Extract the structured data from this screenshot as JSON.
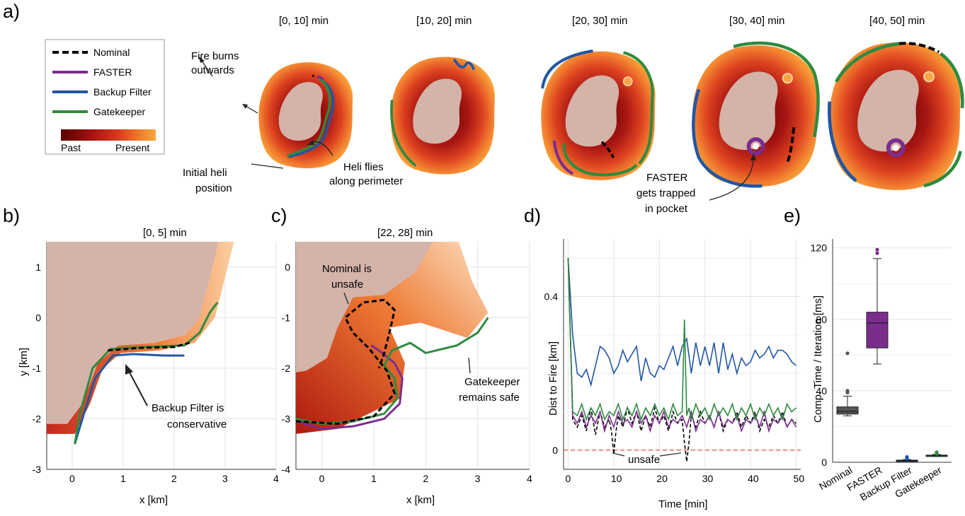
{
  "panels": {
    "a": "a)",
    "b": "b)",
    "c": "c)",
    "d": "d)",
    "e": "e)"
  },
  "legend": {
    "items": [
      {
        "label": "Nominal",
        "color": "#000000",
        "dash": true
      },
      {
        "label": "FASTER",
        "color": "#7b2d8e",
        "dash": false
      },
      {
        "label": "Backup Filter",
        "color": "#2156a5",
        "dash": false
      },
      {
        "label": "Gatekeeper",
        "color": "#2e8b3e",
        "dash": false
      }
    ],
    "colorbar_left": "Past",
    "colorbar_right": "Present",
    "colorbar_colors": [
      "#5a0000",
      "#a01010",
      "#d83a1c",
      "#f07a26",
      "#f8a63a"
    ]
  },
  "panel_a": {
    "titles": [
      "[0, 10] min",
      "[10, 20] min",
      "[20, 30] min",
      "[30, 40] min",
      "[40, 50] min"
    ],
    "annotations": {
      "fire_burns": [
        "Fire burns",
        "outwards"
      ],
      "initial_heli": [
        "Initial heli",
        "position"
      ],
      "heli_flies": [
        "Heli flies",
        "along perimeter"
      ],
      "faster_trapped": [
        "FASTER",
        "gets trapped",
        "in pocket"
      ]
    }
  },
  "panel_b": {
    "title": "[0, 5] min",
    "xlabel": "x [km]",
    "ylabel": "y [km]",
    "xticks": [
      "0",
      "1",
      "2",
      "3",
      "4"
    ],
    "yticks": [
      "1",
      "0",
      "-1",
      "-2",
      "-3"
    ],
    "annotation": [
      "Backup Filter is",
      "conservative"
    ]
  },
  "panel_c": {
    "title": "[22, 28] min",
    "xlabel": "x [km]",
    "xticks": [
      "0",
      "1",
      "2",
      "3",
      "4"
    ],
    "yticks": [
      "0",
      "-1",
      "-2",
      "-3",
      "-4"
    ],
    "annotation_nominal": [
      "Nominal is",
      "unsafe"
    ],
    "annotation_gatekeeper": [
      "Gatekeeper",
      "remains safe"
    ]
  },
  "chart_data": [
    {
      "type": "line",
      "panel": "d",
      "xlabel": "Time [min]",
      "ylabel": "Dist to Fire [km]",
      "xlim": [
        -1,
        51
      ],
      "ylim": [
        -0.05,
        0.55
      ],
      "xticks": [
        "0",
        "10",
        "20",
        "30",
        "40",
        "50"
      ],
      "yticks": [
        "0",
        "0.4"
      ],
      "grid": true,
      "safety_threshold": 0,
      "annotation": "unsafe",
      "series": [
        {
          "name": "Backup Filter",
          "color": "#2156a5",
          "x": [
            0,
            0.5,
            1,
            2,
            3,
            4,
            5,
            6,
            7,
            8,
            9,
            10,
            11,
            12,
            13,
            14,
            15,
            16,
            17,
            18,
            19,
            20,
            21,
            22,
            23,
            24,
            25,
            26,
            27,
            28,
            29,
            30,
            31,
            32,
            33,
            34,
            35,
            36,
            37,
            38,
            39,
            40,
            41,
            42,
            43,
            44,
            45,
            46,
            47,
            48,
            49,
            50
          ],
          "y": [
            0.5,
            0.4,
            0.3,
            0.2,
            0.19,
            0.21,
            0.17,
            0.22,
            0.27,
            0.26,
            0.24,
            0.2,
            0.22,
            0.26,
            0.23,
            0.25,
            0.27,
            0.18,
            0.24,
            0.2,
            0.19,
            0.22,
            0.21,
            0.24,
            0.27,
            0.22,
            0.27,
            0.29,
            0.2,
            0.28,
            0.22,
            0.27,
            0.22,
            0.28,
            0.2,
            0.28,
            0.21,
            0.25,
            0.2,
            0.24,
            0.22,
            0.23,
            0.26,
            0.24,
            0.25,
            0.27,
            0.24,
            0.26,
            0.26,
            0.25,
            0.23,
            0.22
          ]
        },
        {
          "name": "Nominal",
          "color": "#000000",
          "x": [
            0,
            0.5,
            1,
            2,
            3,
            4,
            5,
            6,
            7,
            8,
            9,
            9.5,
            10,
            10.5,
            11,
            12,
            13,
            14,
            15,
            16,
            17,
            18,
            19,
            20,
            21,
            22,
            23,
            24,
            25,
            25.5,
            26,
            26.5,
            27,
            28,
            29,
            30,
            31,
            32,
            33,
            34,
            35,
            36,
            37,
            38,
            39,
            40,
            41,
            42,
            43,
            44,
            45,
            46,
            47,
            48,
            49,
            50
          ],
          "y": [
            0.5,
            0.3,
            0.08,
            0.06,
            0.09,
            0.05,
            0.11,
            0.04,
            0.1,
            0.06,
            0.08,
            0.05,
            -0.01,
            0.05,
            0.09,
            0.06,
            0.11,
            0.07,
            0.1,
            0.05,
            0.09,
            0.06,
            0.11,
            0.07,
            0.09,
            0.05,
            0.1,
            0.07,
            0.08,
            0.02,
            -0.03,
            0.02,
            0.09,
            0.06,
            0.1,
            0.07,
            0.09,
            0.06,
            0.1,
            0.05,
            0.08,
            0.07,
            0.1,
            0.06,
            0.09,
            0.07,
            0.1,
            0.05,
            0.08,
            0.06,
            0.09,
            0.07,
            0.1,
            0.06,
            0.08,
            0.07
          ]
        },
        {
          "name": "FASTER",
          "color": "#7b2d8e",
          "x": [
            0,
            1,
            2,
            3,
            4,
            5,
            6,
            7,
            8,
            9,
            10,
            11,
            12,
            13,
            14,
            15,
            16,
            17,
            18,
            19,
            20,
            21,
            22,
            23,
            24,
            25,
            26,
            27,
            28,
            29,
            30,
            31,
            32,
            33,
            34,
            35,
            36,
            37,
            38,
            39,
            40,
            41,
            42,
            43,
            44,
            45,
            46,
            47,
            48,
            49,
            50
          ],
          "y": [
            0.5,
            0.09,
            0.07,
            0.1,
            0.06,
            0.09,
            0.07,
            0.1,
            0.05,
            0.09,
            0.06,
            0.1,
            0.07,
            0.08,
            0.06,
            0.1,
            0.07,
            0.09,
            0.05,
            0.09,
            0.07,
            0.1,
            0.06,
            0.08,
            0.07,
            0.09,
            0.06,
            0.1,
            0.05,
            0.08,
            0.07,
            0.09,
            0.06,
            0.1,
            0.06,
            0.08,
            0.07,
            0.09,
            0.05,
            0.08,
            0.07,
            0.09,
            0.06,
            0.1,
            0.05,
            0.08,
            0.07,
            0.09,
            0.06,
            0.08,
            0.06
          ]
        },
        {
          "name": "Gatekeeper",
          "color": "#2e8b3e",
          "x": [
            0,
            0.5,
            1,
            2,
            3,
            4,
            5,
            6,
            7,
            8,
            9,
            10,
            11,
            12,
            13,
            14,
            15,
            16,
            17,
            18,
            19,
            20,
            21,
            22,
            23,
            24,
            25,
            25.5,
            26,
            26.5,
            27,
            28,
            29,
            30,
            31,
            32,
            33,
            34,
            35,
            36,
            37,
            38,
            39,
            40,
            41,
            42,
            43,
            44,
            45,
            46,
            47,
            48,
            49,
            50
          ],
          "y": [
            0.5,
            0.3,
            0.1,
            0.09,
            0.12,
            0.08,
            0.11,
            0.09,
            0.12,
            0.08,
            0.1,
            0.09,
            0.12,
            0.08,
            0.11,
            0.09,
            0.12,
            0.08,
            0.11,
            0.09,
            0.12,
            0.09,
            0.11,
            0.08,
            0.12,
            0.09,
            0.1,
            0.34,
            0.09,
            0.11,
            0.08,
            0.12,
            0.09,
            0.11,
            0.08,
            0.12,
            0.09,
            0.11,
            0.09,
            0.12,
            0.08,
            0.11,
            0.09,
            0.12,
            0.08,
            0.11,
            0.09,
            0.12,
            0.09,
            0.11,
            0.08,
            0.12,
            0.1,
            0.11
          ]
        }
      ]
    },
    {
      "type": "box",
      "panel": "e",
      "ylabel": "Comp. Time / Iteration [ms]",
      "ylim": [
        0,
        125
      ],
      "yticks": [
        "0",
        "40",
        "80",
        "120"
      ],
      "grid": true,
      "categories": [
        "Nominal",
        "FASTER",
        "Backup Filter",
        "Gatekeeper"
      ],
      "colors": [
        "#555555",
        "#7b2d8e",
        "#2156a5",
        "#2e8b3e"
      ],
      "boxes": [
        {
          "whisker_low": 26,
          "q1": 27,
          "median": 28.5,
          "q3": 31,
          "whisker_high": 37,
          "outliers": [
            39,
            40,
            61
          ]
        },
        {
          "whisker_low": 55,
          "q1": 64,
          "median": 78,
          "q3": 84,
          "whisker_high": 114,
          "outliers": [
            117,
            119
          ]
        },
        {
          "whisker_low": 0.5,
          "q1": 0.8,
          "median": 1,
          "q3": 1.2,
          "whisker_high": 1.5,
          "outliers": [
            2,
            2.5,
            3
          ]
        },
        {
          "whisker_low": 3.2,
          "q1": 3.5,
          "median": 3.8,
          "q3": 4,
          "whisker_high": 4.4,
          "outliers": [
            4.8,
            5.2,
            5.6
          ]
        }
      ]
    }
  ]
}
